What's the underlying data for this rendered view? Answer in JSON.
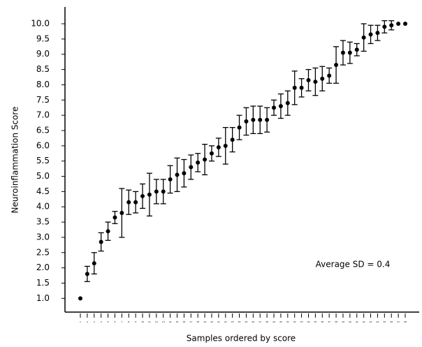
{
  "chart_data": {
    "type": "errorbar",
    "x_label": "Samples ordered by score",
    "y_label": "Neuroinflammation Score",
    "annotation": "Average SD = 0.4",
    "color": "#000000",
    "categories": [
      "1",
      "2",
      "3",
      "4",
      "5",
      "6",
      "7",
      "8",
      "9",
      "10",
      "11",
      "12",
      "13",
      "14",
      "15",
      "16",
      "17",
      "18",
      "19",
      "20",
      "21",
      "22",
      "23",
      "24",
      "25",
      "26",
      "27",
      "28",
      "29",
      "30",
      "31",
      "32",
      "33",
      "34",
      "35",
      "36",
      "37",
      "38",
      "39",
      "40",
      "41",
      "42",
      "43",
      "44",
      "45",
      "46",
      "47",
      "48"
    ],
    "values": [
      1.0,
      1.8,
      2.15,
      2.85,
      3.2,
      3.65,
      3.8,
      4.15,
      4.15,
      4.35,
      4.4,
      4.5,
      4.5,
      4.9,
      5.05,
      5.1,
      5.3,
      5.45,
      5.55,
      5.75,
      5.95,
      6.0,
      6.2,
      6.6,
      6.8,
      6.85,
      6.85,
      6.85,
      7.25,
      7.3,
      7.4,
      7.9,
      7.9,
      8.15,
      8.1,
      8.2,
      8.3,
      8.65,
      9.05,
      9.05,
      9.15,
      9.55,
      9.65,
      9.7,
      9.9,
      9.95,
      10.0,
      10.0
    ],
    "errors": [
      0,
      0.25,
      0.35,
      0.3,
      0.3,
      0.2,
      0.8,
      0.4,
      0.35,
      0.4,
      0.7,
      0.4,
      0.4,
      0.45,
      0.55,
      0.45,
      0.4,
      0.3,
      0.5,
      0.25,
      0.3,
      0.6,
      0.4,
      0.4,
      0.45,
      0.45,
      0.45,
      0.4,
      0.25,
      0.4,
      0.4,
      0.55,
      0.3,
      0.35,
      0.45,
      0.4,
      0.25,
      0.6,
      0.4,
      0.35,
      0.2,
      0.45,
      0.3,
      0.25,
      0.2,
      0.15,
      0,
      0
    ],
    "ylim": [
      0.55,
      10.55
    ],
    "yticks": [
      {
        "value": 1,
        "label": "1.0"
      },
      {
        "value": 1.5,
        "label": "1.5"
      },
      {
        "value": 2,
        "label": "2.0"
      },
      {
        "value": 2.5,
        "label": "2.5"
      },
      {
        "value": 3,
        "label": "3.0"
      },
      {
        "value": 3.5,
        "label": "3.5"
      },
      {
        "value": 4,
        "label": "4.0"
      },
      {
        "value": 4.5,
        "label": "4.5"
      },
      {
        "value": 5,
        "label": "5.0"
      },
      {
        "value": 5.5,
        "label": "5.5"
      },
      {
        "value": 6,
        "label": "6.0"
      },
      {
        "value": 6.5,
        "label": "6.5"
      },
      {
        "value": 7,
        "label": "7.0"
      },
      {
        "value": 7.5,
        "label": "7.5"
      },
      {
        "value": 8,
        "label": "8.0"
      },
      {
        "value": 8.5,
        "label": "8.5"
      },
      {
        "value": 9,
        "label": "9.0"
      },
      {
        "value": 9.5,
        "label": "9.5"
      },
      {
        "value": 10,
        "label": "10.0"
      }
    ]
  }
}
